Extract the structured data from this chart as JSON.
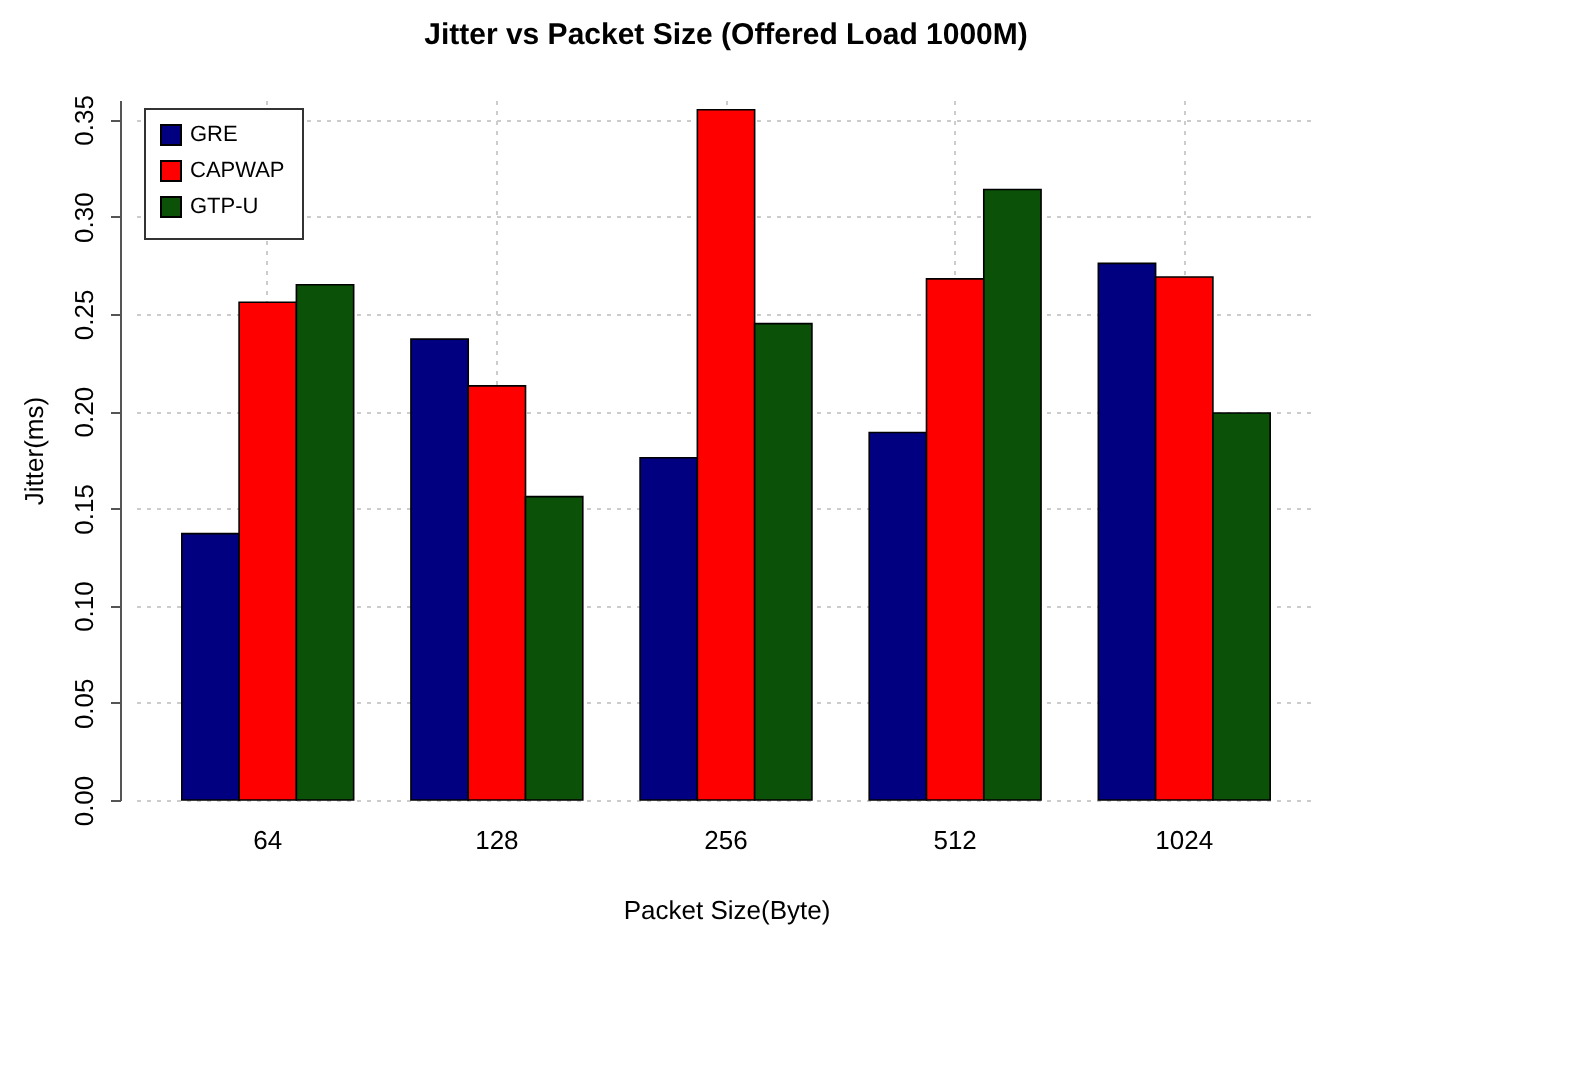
{
  "chart_data": {
    "type": "bar",
    "title": "Jitter vs Packet Size (Offered Load 1000M)",
    "xlabel": "Packet Size(Byte)",
    "ylabel": "Jitter(ms)",
    "categories": [
      "64",
      "128",
      "256",
      "512",
      "1024"
    ],
    "series": [
      {
        "name": "GRE",
        "color": "#000080",
        "values": [
          0.137,
          0.237,
          0.176,
          0.189,
          0.276
        ]
      },
      {
        "name": "CAPWAP",
        "color": "#ff0000",
        "values": [
          0.256,
          0.213,
          0.355,
          0.268,
          0.269
        ]
      },
      {
        "name": "GTP-U",
        "color": "#0b5108",
        "values": [
          0.265,
          0.156,
          0.245,
          0.314,
          0.199
        ]
      }
    ],
    "ylim": [
      0,
      0.36
    ],
    "yticks": [
      {
        "value": 0,
        "label": "0.00"
      },
      {
        "value": 0.05,
        "label": "0.05"
      },
      {
        "value": 0.1,
        "label": "0.10"
      },
      {
        "value": 0.15,
        "label": "0.15"
      },
      {
        "value": 0.2,
        "label": "0.20"
      },
      {
        "value": 0.25,
        "label": "0.25"
      },
      {
        "value": 0.3,
        "label": "0.30"
      },
      {
        "value": 0.35,
        "label": "0.35"
      }
    ],
    "grid": true,
    "legend": "top left"
  }
}
